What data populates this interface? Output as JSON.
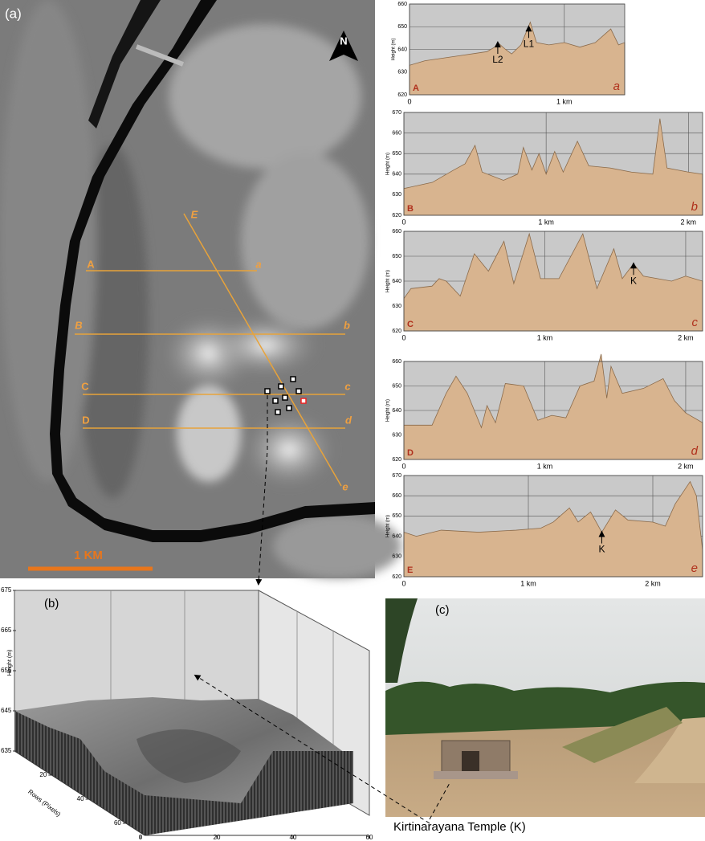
{
  "chart_data": [
    {
      "type": "area",
      "y_label": "Height (m)",
      "start_label": "A",
      "end_label": "a",
      "color": "#d8b48f",
      "x": [
        0,
        0.1,
        0.3,
        0.5,
        0.55,
        0.57,
        0.62,
        0.66,
        0.72,
        0.78,
        0.82,
        0.9,
        1.0,
        1.1,
        1.2,
        1.3,
        1.35,
        1.39
      ],
      "values": [
        633,
        635,
        637,
        639,
        641,
        643,
        640,
        638,
        642,
        652,
        643,
        642,
        643,
        641,
        643,
        649,
        642,
        643
      ],
      "xlim": [
        0,
        1.39
      ],
      "ylim": [
        620,
        660
      ],
      "yticks": [
        620,
        630,
        640,
        650,
        660
      ],
      "xticks": [
        0,
        {
          "value": 1,
          "label": "1 km"
        }
      ],
      "annotations": [
        {
          "text": "L2",
          "x": 0.57,
          "y": 643
        },
        {
          "text": "L1",
          "x": 0.77,
          "y": 650
        }
      ]
    },
    {
      "type": "area",
      "y_label": "Height (m)",
      "start_label": "B",
      "end_label": "b",
      "color": "#d8b48f",
      "x": [
        0,
        0.2,
        0.35,
        0.43,
        0.5,
        0.55,
        0.7,
        0.8,
        0.84,
        0.9,
        0.95,
        1.0,
        1.06,
        1.12,
        1.22,
        1.3,
        1.45,
        1.6,
        1.75,
        1.8,
        1.85,
        2.0,
        2.1
      ],
      "values": [
        633,
        636,
        642,
        645,
        654,
        641,
        637,
        640,
        653,
        642,
        650,
        640,
        651,
        641,
        656,
        644,
        643,
        641,
        640,
        667,
        643,
        641,
        640
      ],
      "xlim": [
        0,
        2.1
      ],
      "ylim": [
        620,
        670
      ],
      "yticks": [
        620,
        630,
        640,
        650,
        660,
        670
      ],
      "xticks": [
        0,
        {
          "value": 1,
          "label": "1 km"
        },
        {
          "value": 2,
          "label": "2 km"
        }
      ],
      "annotations": []
    },
    {
      "type": "area",
      "y_label": "Height (m)",
      "start_label": "C",
      "end_label": "c",
      "color": "#d8b48f",
      "x": [
        0,
        0.05,
        0.2,
        0.25,
        0.3,
        0.4,
        0.5,
        0.6,
        0.71,
        0.78,
        0.89,
        0.97,
        1.1,
        1.27,
        1.37,
        1.49,
        1.55,
        1.63,
        1.7,
        1.9,
        2.0,
        2.12
      ],
      "values": [
        633,
        637,
        638,
        641,
        640,
        634,
        651,
        644,
        656,
        639,
        659,
        641,
        641,
        659,
        637,
        653,
        641,
        647,
        642,
        640,
        642,
        640
      ],
      "xlim": [
        0,
        2.12
      ],
      "ylim": [
        620,
        660
      ],
      "yticks": [
        620,
        630,
        640,
        650,
        660
      ],
      "xticks": [
        0,
        {
          "value": 1,
          "label": "1 km"
        },
        {
          "value": 2,
          "label": "2 km"
        }
      ],
      "annotations": [
        {
          "text": "K",
          "x": 1.63,
          "y": 647
        }
      ]
    },
    {
      "type": "area",
      "y_label": "Height (m)",
      "start_label": "D",
      "end_label": "d",
      "color": "#d8b48f",
      "x": [
        0,
        0.2,
        0.3,
        0.37,
        0.45,
        0.55,
        0.59,
        0.65,
        0.72,
        0.85,
        0.95,
        1.05,
        1.15,
        1.25,
        1.35,
        1.4,
        1.44,
        1.47,
        1.55,
        1.7,
        1.84,
        1.92,
        2.0,
        2.12
      ],
      "values": [
        634,
        634,
        647,
        654,
        647,
        633,
        642,
        635,
        651,
        650,
        636,
        638,
        637,
        650,
        652,
        663,
        645,
        658,
        647,
        649,
        653,
        644,
        639,
        635
      ],
      "xlim": [
        0,
        2.12
      ],
      "ylim": [
        620,
        660
      ],
      "yticks": [
        620,
        630,
        640,
        650,
        660
      ],
      "xticks": [
        0,
        {
          "value": 1,
          "label": "1 km"
        },
        {
          "value": 2,
          "label": "2 km"
        }
      ],
      "annotations": []
    },
    {
      "type": "area",
      "y_label": "Height (m)",
      "start_label": "E",
      "end_label": "e",
      "color": "#d8b48f",
      "x": [
        0,
        0.1,
        0.3,
        0.6,
        0.9,
        1.1,
        1.2,
        1.33,
        1.4,
        1.5,
        1.59,
        1.7,
        1.8,
        2.0,
        2.1,
        2.18,
        2.3,
        2.35,
        2.4
      ],
      "values": [
        642,
        640,
        643,
        642,
        643,
        644,
        647,
        654,
        647,
        652,
        642,
        653,
        648,
        647,
        645,
        656,
        667,
        660,
        633
      ],
      "xlim": [
        0,
        2.4
      ],
      "ylim": [
        620,
        670
      ],
      "yticks": [
        620,
        630,
        640,
        650,
        660,
        670
      ],
      "xticks": [
        0,
        {
          "value": 1,
          "label": "1 km"
        },
        {
          "value": 2,
          "label": "2 km"
        }
      ],
      "annotations": [
        {
          "text": "K",
          "x": 1.59,
          "y": 642
        }
      ]
    }
  ],
  "panel_a": {
    "label": "(a)",
    "north": "N",
    "scale_bar": "1 KM",
    "line_labels": [
      "A",
      "a",
      "B",
      "b",
      "C",
      "c",
      "D",
      "d",
      "E",
      "e"
    ]
  },
  "panel_b": {
    "label": "(b)",
    "y_label": "Height (m)",
    "yticks": [
      635,
      645,
      655,
      665,
      675
    ],
    "rows_label": "Rows (Pixels)",
    "row_ticks": [
      20,
      40,
      60
    ],
    "col_ticks": [
      0,
      20,
      40,
      60
    ]
  },
  "panel_c": {
    "label": "(c)",
    "caption": "Kirtinarayana Temple (K)"
  }
}
